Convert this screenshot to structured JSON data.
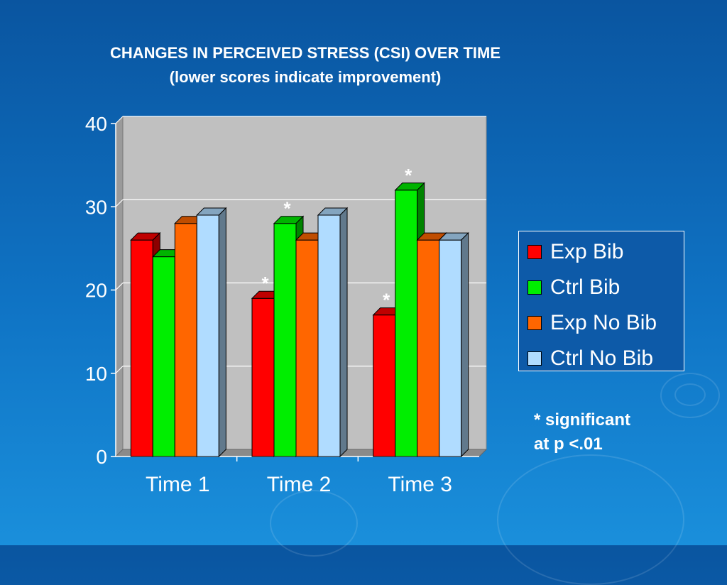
{
  "slide": {
    "title_line1": "CHANGES IN PERCEIVED STRESS (CSI) OVER TIME",
    "title_line2": "(lower scores indicate improvement)",
    "note_line1": "* significant",
    "note_line2": "at p <.01"
  },
  "colors": {
    "background": "#0f6cbf",
    "plot_area": "#c0c0c0",
    "Exp Bib": "#ff0000",
    "Ctrl Bib": "#00ee00",
    "Exp No Bib": "#ff6600",
    "Ctrl No Bib": "#b0dcff"
  },
  "chart_data": {
    "type": "bar",
    "categories": [
      "Time 1",
      "Time 2",
      "Time 3"
    ],
    "series": [
      {
        "name": "Exp Bib",
        "values": [
          26,
          19,
          17
        ],
        "significant": [
          false,
          true,
          true
        ]
      },
      {
        "name": "Ctrl Bib",
        "values": [
          24,
          28,
          32
        ],
        "significant": [
          false,
          true,
          true
        ]
      },
      {
        "name": "Exp No Bib",
        "values": [
          28,
          26,
          26
        ],
        "significant": [
          false,
          false,
          false
        ]
      },
      {
        "name": "Ctrl No Bib",
        "values": [
          29,
          29,
          26
        ],
        "significant": [
          false,
          false,
          false
        ]
      }
    ],
    "ylim": [
      0,
      40
    ],
    "yticks": [
      "0",
      "10",
      "20",
      "30",
      "40"
    ],
    "significance_marker": "*",
    "grid": true,
    "legend": "right",
    "three_d": true
  }
}
